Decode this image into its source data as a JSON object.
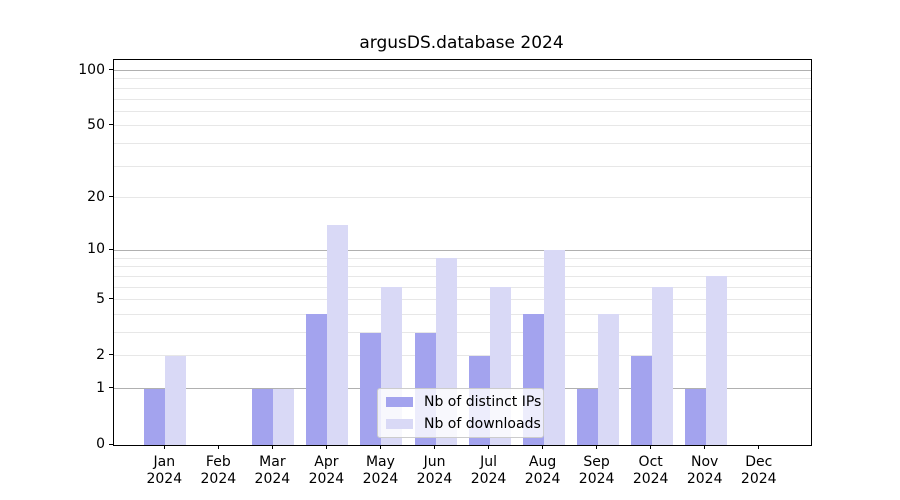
{
  "chart_data": {
    "type": "bar",
    "title": "argusDS.database 2024",
    "categories": [
      "Jan",
      "Feb",
      "Mar",
      "Apr",
      "May",
      "Jun",
      "Jul",
      "Aug",
      "Sep",
      "Oct",
      "Nov",
      "Dec"
    ],
    "year": "2024",
    "series": [
      {
        "name": "Nb of distinct IPs",
        "color": "#a3a3ee",
        "values": [
          1,
          0,
          1,
          4,
          3,
          3,
          2,
          4,
          1,
          2,
          1,
          0
        ]
      },
      {
        "name": "Nb of downloads",
        "color": "#d9d9f6",
        "values": [
          2,
          0,
          1,
          14,
          6,
          9,
          6,
          10,
          4,
          6,
          7,
          0
        ]
      }
    ],
    "xlabel": "",
    "ylabel": "",
    "yscale": "log1p",
    "ylim": [
      0,
      114
    ],
    "yticks": [
      0,
      1,
      2,
      5,
      10,
      20,
      50,
      100
    ],
    "grid": "on",
    "grid_major_values": [
      1,
      10,
      100
    ],
    "grid_minor_values": [
      2,
      3,
      4,
      5,
      6,
      7,
      8,
      9,
      20,
      30,
      40,
      50,
      60,
      70,
      80,
      90
    ],
    "grid_major_color": "#b0b0b0",
    "grid_minor_color": "#e7e7e7",
    "axis_color": "#000000",
    "background_color": "#ffffff",
    "legend_position": "lower center"
  }
}
